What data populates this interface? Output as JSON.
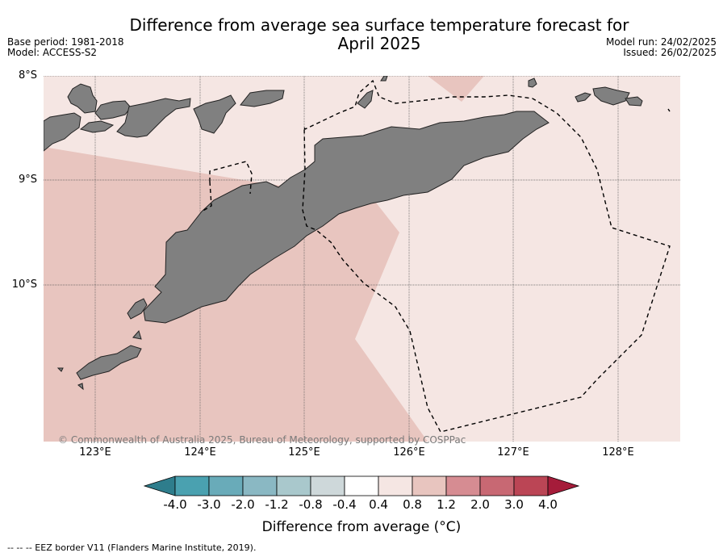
{
  "title": "Difference from average sea surface temperature forecast for April 2025",
  "meta": {
    "base_period": "Base period: 1981-2018",
    "model": "Model: ACCESS-S2",
    "model_run": "Model run: 24/02/2025",
    "issued": "Issued: 26/02/2025"
  },
  "axes": {
    "lat_labels": [
      "8°S",
      "9°S",
      "10°S"
    ],
    "lon_labels": [
      "123°E",
      "124°E",
      "125°E",
      "126°E",
      "127°E",
      "128°E"
    ]
  },
  "copyright": "© Commonwealth of Australia 2025, Bureau of Meteorology, supported by COSPPac",
  "colorbar": {
    "title": "Difference from average (°C)",
    "ticks": [
      "-4.0",
      "-3.0",
      "-2.0",
      "-1.2",
      "-0.8",
      "-0.4",
      "0.4",
      "0.8",
      "1.2",
      "2.0",
      "3.0",
      "4.0"
    ],
    "colors": [
      "#2e7d8c",
      "#4aa1b0",
      "#69abb9",
      "#8ab8c3",
      "#a9c8cc",
      "#ced8da",
      "#ffffff",
      "#f5e6e3",
      "#e8c5bf",
      "#d68c92",
      "#c86873",
      "#bb4555",
      "#a51c3a"
    ]
  },
  "footer": "--  --  -- EEZ border V11 (Flanders Marine Institute, 2019).",
  "colors": {
    "land": "#808080",
    "anomaly_0_4_to_0_8": "#f5e6e3",
    "anomaly_0_8_to_1_2": "#e8c5bf"
  }
}
